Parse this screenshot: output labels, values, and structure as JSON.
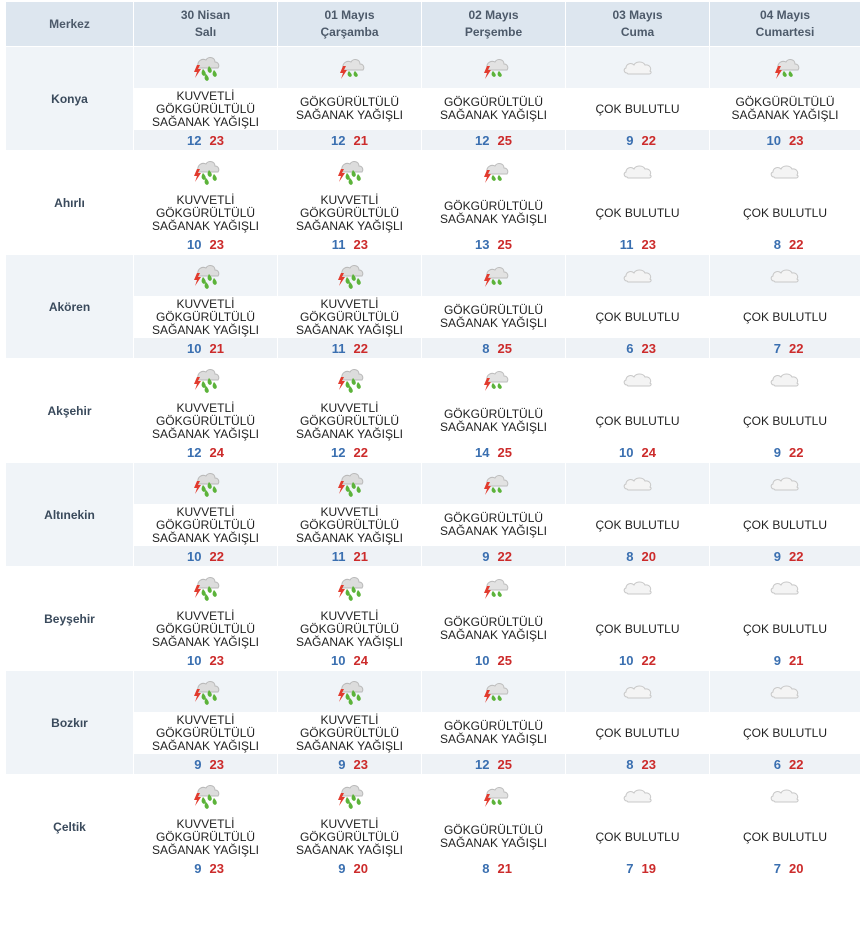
{
  "header": {
    "center_label": "Merkez",
    "days": [
      {
        "date": "30 Nisan",
        "weekday": "Salı"
      },
      {
        "date": "01 Mayıs",
        "weekday": "Çarşamba"
      },
      {
        "date": "02 Mayıs",
        "weekday": "Perşembe"
      },
      {
        "date": "03 Mayıs",
        "weekday": "Cuma"
      },
      {
        "date": "04 Mayıs",
        "weekday": "Cumartesi"
      }
    ]
  },
  "conditions": {
    "strong_storm": [
      "KUVVETLİ",
      "GÖKGÜRÜLTÜLÜ",
      "SAĞANAK YAĞIŞLI"
    ],
    "storm": [
      "GÖKGÜRÜLTÜLÜ",
      "SAĞANAK YAĞIŞLI"
    ],
    "very_cloudy": [
      "ÇOK BULUTLU"
    ]
  },
  "icons": {
    "strong_storm": "heavy-thunder-rain-icon",
    "storm": "thunder-rain-icon",
    "very_cloudy": "cloud-icon"
  },
  "colors": {
    "min_temp": "#3a6fb0",
    "max_temp": "#cc2b2b",
    "lightning": "#e23b2e",
    "rain": "#5cb33a"
  },
  "cities": [
    {
      "name": "Konya",
      "days": [
        {
          "cond": "strong_storm",
          "min": "12",
          "max": "23"
        },
        {
          "cond": "storm",
          "min": "12",
          "max": "21"
        },
        {
          "cond": "storm",
          "min": "12",
          "max": "25"
        },
        {
          "cond": "very_cloudy",
          "min": "9",
          "max": "22"
        },
        {
          "cond": "storm",
          "min": "10",
          "max": "23"
        }
      ]
    },
    {
      "name": "Ahırlı",
      "days": [
        {
          "cond": "strong_storm",
          "min": "10",
          "max": "23"
        },
        {
          "cond": "strong_storm",
          "min": "11",
          "max": "23"
        },
        {
          "cond": "storm",
          "min": "13",
          "max": "25"
        },
        {
          "cond": "very_cloudy",
          "min": "11",
          "max": "23"
        },
        {
          "cond": "very_cloudy",
          "min": "8",
          "max": "22"
        }
      ]
    },
    {
      "name": "Akören",
      "days": [
        {
          "cond": "strong_storm",
          "min": "10",
          "max": "21"
        },
        {
          "cond": "strong_storm",
          "min": "11",
          "max": "22"
        },
        {
          "cond": "storm",
          "min": "8",
          "max": "25"
        },
        {
          "cond": "very_cloudy",
          "min": "6",
          "max": "23"
        },
        {
          "cond": "very_cloudy",
          "min": "7",
          "max": "22"
        }
      ]
    },
    {
      "name": "Akşehir",
      "days": [
        {
          "cond": "strong_storm",
          "min": "12",
          "max": "24"
        },
        {
          "cond": "strong_storm",
          "min": "12",
          "max": "22"
        },
        {
          "cond": "storm",
          "min": "14",
          "max": "25"
        },
        {
          "cond": "very_cloudy",
          "min": "10",
          "max": "24"
        },
        {
          "cond": "very_cloudy",
          "min": "9",
          "max": "22"
        }
      ]
    },
    {
      "name": "Altınekin",
      "days": [
        {
          "cond": "strong_storm",
          "min": "10",
          "max": "22"
        },
        {
          "cond": "strong_storm",
          "min": "11",
          "max": "21"
        },
        {
          "cond": "storm",
          "min": "9",
          "max": "22"
        },
        {
          "cond": "very_cloudy",
          "min": "8",
          "max": "20"
        },
        {
          "cond": "very_cloudy",
          "min": "9",
          "max": "22"
        }
      ]
    },
    {
      "name": "Beyşehir",
      "days": [
        {
          "cond": "strong_storm",
          "min": "10",
          "max": "23"
        },
        {
          "cond": "strong_storm",
          "min": "10",
          "max": "24"
        },
        {
          "cond": "storm",
          "min": "10",
          "max": "25"
        },
        {
          "cond": "very_cloudy",
          "min": "10",
          "max": "22"
        },
        {
          "cond": "very_cloudy",
          "min": "9",
          "max": "21"
        }
      ]
    },
    {
      "name": "Bozkır",
      "days": [
        {
          "cond": "strong_storm",
          "min": "9",
          "max": "23"
        },
        {
          "cond": "strong_storm",
          "min": "9",
          "max": "23"
        },
        {
          "cond": "storm",
          "min": "12",
          "max": "25"
        },
        {
          "cond": "very_cloudy",
          "min": "8",
          "max": "23"
        },
        {
          "cond": "very_cloudy",
          "min": "6",
          "max": "22"
        }
      ]
    },
    {
      "name": "Çeltik",
      "days": [
        {
          "cond": "strong_storm",
          "min": "9",
          "max": "23"
        },
        {
          "cond": "strong_storm",
          "min": "9",
          "max": "20"
        },
        {
          "cond": "storm",
          "min": "8",
          "max": "21"
        },
        {
          "cond": "very_cloudy",
          "min": "7",
          "max": "19"
        },
        {
          "cond": "very_cloudy",
          "min": "7",
          "max": "20"
        }
      ]
    }
  ]
}
